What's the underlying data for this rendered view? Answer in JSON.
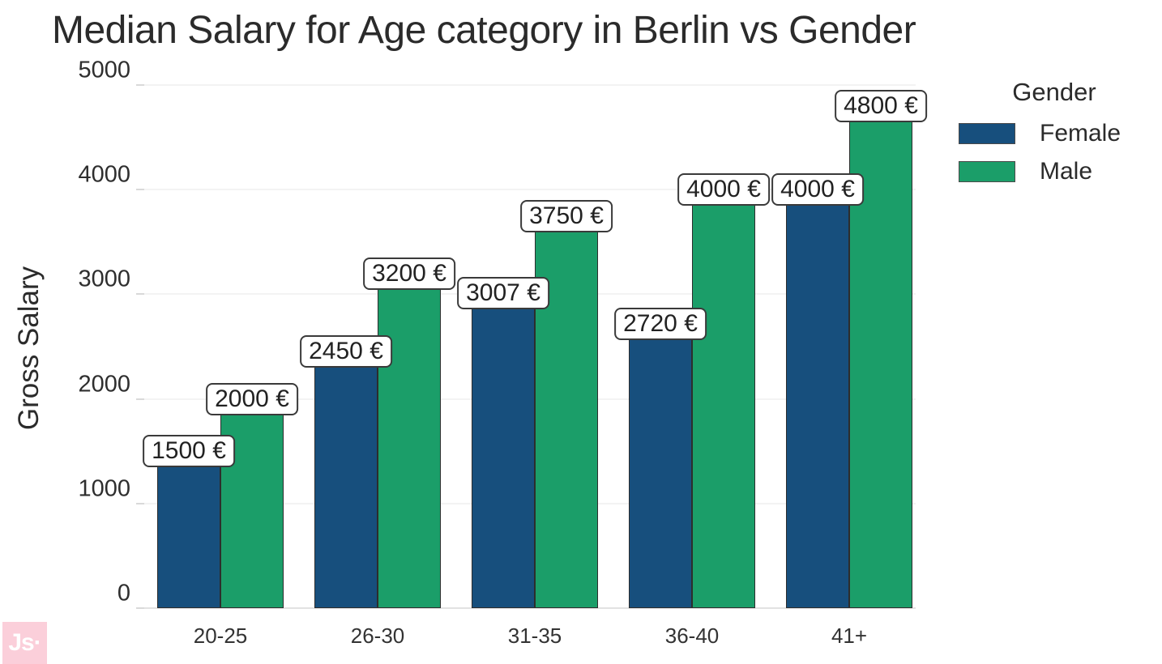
{
  "page": {
    "background": "#ffffff"
  },
  "logo": {
    "text": "Js·"
  },
  "colors": {
    "female_bar": "#174f7d",
    "male_bar": "#1b9e69",
    "title_text": "#2b2b2b",
    "grid": "#f3f3f3",
    "logo_bg": "#fbcfda",
    "logo_text": "#ffffff"
  },
  "chart_data": {
    "type": "bar",
    "title": "Median Salary for Age category in Berlin vs Gender",
    "xlabel": "",
    "ylabel": "Gross Salary",
    "categories": [
      "20-25",
      "26-30",
      "31-35",
      "36-40",
      "41+"
    ],
    "series": [
      {
        "name": "Female",
        "color": "#174f7d",
        "values": [
          1500,
          2450,
          3007,
          2720,
          4000
        ],
        "labels": [
          "1500 €",
          "2450 €",
          "3007 €",
          "2720 €",
          "4000 €"
        ]
      },
      {
        "name": "Male",
        "color": "#1b9e69",
        "values": [
          2000,
          3200,
          3750,
          4000,
          4800
        ],
        "labels": [
          "2000 €",
          "3200 €",
          "3750 €",
          "4000 €",
          "4800 €"
        ]
      }
    ],
    "ylim": [
      0,
      5000
    ],
    "yticks": [
      0,
      1000,
      2000,
      3000,
      4000,
      5000
    ],
    "grid": true,
    "legend": {
      "title": "Gender",
      "position": "right"
    }
  }
}
